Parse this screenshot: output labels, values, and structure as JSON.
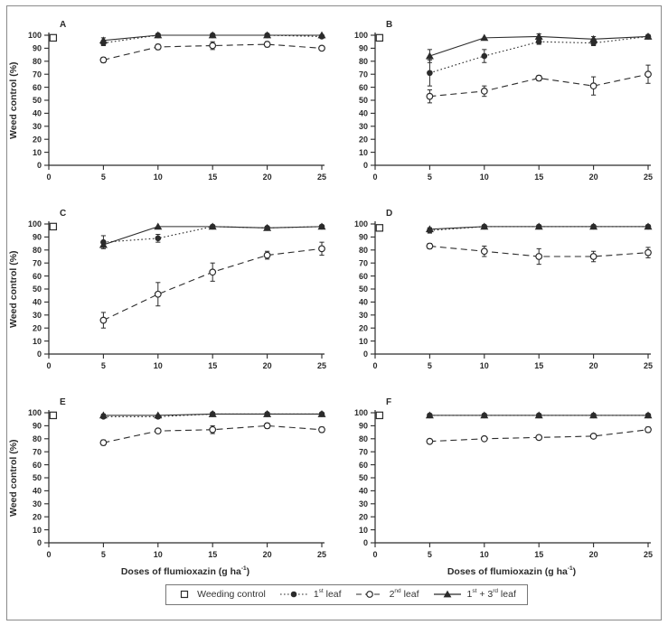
{
  "figure": {
    "ylabel": "Weed control (%)",
    "xlabel": "Doses of flumioxazin (g ha{-1})",
    "ink_color": "#2b2b2b",
    "background": "#ffffff",
    "legend": [
      {
        "label": "Weeding control",
        "marker": "square-open",
        "line": "none"
      },
      {
        "label": "1{st} leaf",
        "marker": "circle-filled",
        "line": "dotted"
      },
      {
        "label": "2{nd} leaf",
        "marker": "circle-open",
        "line": "dashed"
      },
      {
        "label": "1{st} + 3{rd} leaf",
        "marker": "triangle-filled",
        "line": "solid"
      }
    ]
  },
  "chart_data": [
    {
      "panel": "A",
      "type": "line",
      "xlim": [
        0,
        25
      ],
      "ylim": [
        0,
        100
      ],
      "xticks": [
        0,
        5,
        10,
        15,
        20,
        25
      ],
      "yticks": [
        0,
        10,
        20,
        30,
        40,
        50,
        60,
        70,
        80,
        90,
        100
      ],
      "ylabel_shown": true,
      "xlabel_shown": false,
      "grid": false,
      "series": [
        {
          "name": "Weeding control",
          "marker": "square-open",
          "line": "none",
          "x": [
            0.4
          ],
          "y": [
            98
          ],
          "err": [
            0
          ]
        },
        {
          "name": "1st leaf",
          "marker": "circle-filled",
          "line": "dotted",
          "x": [
            5,
            10,
            15,
            20,
            25
          ],
          "y": [
            94,
            100,
            100,
            100,
            99
          ],
          "err": [
            2,
            1,
            0,
            0,
            1
          ]
        },
        {
          "name": "2nd leaf",
          "marker": "circle-open",
          "line": "dashed",
          "x": [
            5,
            10,
            15,
            20,
            25
          ],
          "y": [
            81,
            91,
            92,
            93,
            90
          ],
          "err": [
            2,
            2,
            3,
            2,
            1
          ]
        },
        {
          "name": "1st + 3rd leaf",
          "marker": "triangle-filled",
          "line": "solid",
          "x": [
            5,
            10,
            15,
            20,
            25
          ],
          "y": [
            96,
            100,
            100,
            100,
            100
          ],
          "err": [
            2,
            0,
            0,
            0,
            0
          ]
        }
      ]
    },
    {
      "panel": "B",
      "type": "line",
      "xlim": [
        0,
        25
      ],
      "ylim": [
        0,
        100
      ],
      "xticks": [
        0,
        5,
        10,
        15,
        20,
        25
      ],
      "yticks": [
        0,
        10,
        20,
        30,
        40,
        50,
        60,
        70,
        80,
        90,
        100
      ],
      "ylabel_shown": false,
      "xlabel_shown": false,
      "grid": false,
      "series": [
        {
          "name": "Weeding control",
          "marker": "square-open",
          "line": "none",
          "x": [
            0.4
          ],
          "y": [
            98
          ],
          "err": [
            0
          ]
        },
        {
          "name": "1st leaf",
          "marker": "circle-filled",
          "line": "dotted",
          "x": [
            5,
            10,
            15,
            20,
            25
          ],
          "y": [
            71,
            84,
            95,
            94,
            99
          ],
          "err": [
            10,
            5,
            2,
            2,
            1
          ]
        },
        {
          "name": "2nd leaf",
          "marker": "circle-open",
          "line": "dashed",
          "x": [
            5,
            10,
            15,
            20,
            25
          ],
          "y": [
            53,
            57,
            67,
            61,
            70
          ],
          "err": [
            5,
            4,
            2,
            7,
            7
          ]
        },
        {
          "name": "1st + 3rd leaf",
          "marker": "triangle-filled",
          "line": "solid",
          "x": [
            5,
            10,
            15,
            20,
            25
          ],
          "y": [
            84,
            98,
            99,
            97,
            99
          ],
          "err": [
            5,
            0,
            2,
            2,
            0
          ]
        }
      ]
    },
    {
      "panel": "C",
      "type": "line",
      "xlim": [
        0,
        25
      ],
      "ylim": [
        0,
        100
      ],
      "xticks": [
        0,
        5,
        10,
        15,
        20,
        25
      ],
      "yticks": [
        0,
        10,
        20,
        30,
        40,
        50,
        60,
        70,
        80,
        90,
        100
      ],
      "ylabel_shown": true,
      "xlabel_shown": false,
      "grid": false,
      "series": [
        {
          "name": "Weeding control",
          "marker": "square-open",
          "line": "none",
          "x": [
            0.4
          ],
          "y": [
            98
          ],
          "err": [
            0
          ]
        },
        {
          "name": "1st leaf",
          "marker": "circle-filled",
          "line": "dotted",
          "x": [
            5,
            10,
            15,
            20,
            25
          ],
          "y": [
            86,
            89,
            98,
            97,
            98
          ],
          "err": [
            5,
            3,
            1,
            1,
            1
          ]
        },
        {
          "name": "2nd leaf",
          "marker": "circle-open",
          "line": "dashed",
          "x": [
            5,
            10,
            15,
            20,
            25
          ],
          "y": [
            26,
            46,
            63,
            76,
            81
          ],
          "err": [
            6,
            9,
            7,
            3,
            5
          ]
        },
        {
          "name": "1st + 3rd leaf",
          "marker": "triangle-filled",
          "line": "solid",
          "x": [
            5,
            10,
            15,
            20,
            25
          ],
          "y": [
            84,
            98,
            98,
            97,
            98
          ],
          "err": [
            2,
            0,
            0,
            1,
            0
          ]
        }
      ]
    },
    {
      "panel": "D",
      "type": "line",
      "xlim": [
        0,
        25
      ],
      "ylim": [
        0,
        100
      ],
      "xticks": [
        0,
        5,
        10,
        15,
        20,
        25
      ],
      "yticks": [
        0,
        10,
        20,
        30,
        40,
        50,
        60,
        70,
        80,
        90,
        100
      ],
      "ylabel_shown": false,
      "xlabel_shown": false,
      "grid": false,
      "series": [
        {
          "name": "Weeding control",
          "marker": "square-open",
          "line": "none",
          "x": [
            0.4
          ],
          "y": [
            97
          ],
          "err": [
            0
          ]
        },
        {
          "name": "1st leaf",
          "marker": "circle-filled",
          "line": "dotted",
          "x": [
            5,
            10,
            15,
            20,
            25
          ],
          "y": [
            95,
            98,
            98,
            98,
            98
          ],
          "err": [
            2,
            0,
            0,
            0,
            0
          ]
        },
        {
          "name": "2nd leaf",
          "marker": "circle-open",
          "line": "dashed",
          "x": [
            5,
            10,
            15,
            20,
            25
          ],
          "y": [
            83,
            79,
            75,
            75,
            78
          ],
          "err": [
            2,
            4,
            6,
            4,
            4
          ]
        },
        {
          "name": "1st + 3rd leaf",
          "marker": "triangle-filled",
          "line": "solid",
          "x": [
            5,
            10,
            15,
            20,
            25
          ],
          "y": [
            96,
            98,
            98,
            98,
            98
          ],
          "err": [
            1,
            0,
            0,
            0,
            0
          ]
        }
      ]
    },
    {
      "panel": "E",
      "type": "line",
      "xlim": [
        0,
        25
      ],
      "ylim": [
        0,
        100
      ],
      "xticks": [
        0,
        5,
        10,
        15,
        20,
        25
      ],
      "yticks": [
        0,
        10,
        20,
        30,
        40,
        50,
        60,
        70,
        80,
        90,
        100
      ],
      "ylabel_shown": true,
      "xlabel_shown": true,
      "grid": false,
      "series": [
        {
          "name": "Weeding control",
          "marker": "square-open",
          "line": "none",
          "x": [
            0.4
          ],
          "y": [
            98
          ],
          "err": [
            0
          ]
        },
        {
          "name": "1st leaf",
          "marker": "circle-filled",
          "line": "dotted",
          "x": [
            5,
            10,
            15,
            20,
            25
          ],
          "y": [
            97,
            97,
            99,
            99,
            99
          ],
          "err": [
            1,
            1,
            1,
            1,
            1
          ]
        },
        {
          "name": "2nd leaf",
          "marker": "circle-open",
          "line": "dashed",
          "x": [
            5,
            10,
            15,
            20,
            25
          ],
          "y": [
            77,
            86,
            87,
            90,
            87
          ],
          "err": [
            2,
            1,
            3,
            2,
            2
          ]
        },
        {
          "name": "1st + 3rd leaf",
          "marker": "triangle-filled",
          "line": "solid",
          "x": [
            5,
            10,
            15,
            20,
            25
          ],
          "y": [
            98,
            98,
            99,
            99,
            99
          ],
          "err": [
            1,
            0,
            0,
            0,
            0
          ]
        }
      ]
    },
    {
      "panel": "F",
      "type": "line",
      "xlim": [
        0,
        25
      ],
      "ylim": [
        0,
        100
      ],
      "xticks": [
        0,
        5,
        10,
        15,
        20,
        25
      ],
      "yticks": [
        0,
        10,
        20,
        30,
        40,
        50,
        60,
        70,
        80,
        90,
        100
      ],
      "ylabel_shown": false,
      "xlabel_shown": true,
      "grid": false,
      "series": [
        {
          "name": "Weeding control",
          "marker": "square-open",
          "line": "none",
          "x": [
            0.4
          ],
          "y": [
            98
          ],
          "err": [
            0
          ]
        },
        {
          "name": "1st leaf",
          "marker": "circle-filled",
          "line": "dotted",
          "x": [
            5,
            10,
            15,
            20,
            25
          ],
          "y": [
            98,
            98,
            98,
            98,
            98
          ],
          "err": [
            0,
            0,
            0,
            0,
            0
          ]
        },
        {
          "name": "2nd leaf",
          "marker": "circle-open",
          "line": "dashed",
          "x": [
            5,
            10,
            15,
            20,
            25
          ],
          "y": [
            78,
            80,
            81,
            82,
            87
          ],
          "err": [
            1,
            1,
            1,
            1,
            2
          ]
        },
        {
          "name": "1st + 3rd leaf",
          "marker": "triangle-filled",
          "line": "solid",
          "x": [
            5,
            10,
            15,
            20,
            25
          ],
          "y": [
            98,
            98,
            98,
            98,
            98
          ],
          "err": [
            0,
            0,
            0,
            0,
            0
          ]
        }
      ]
    }
  ]
}
